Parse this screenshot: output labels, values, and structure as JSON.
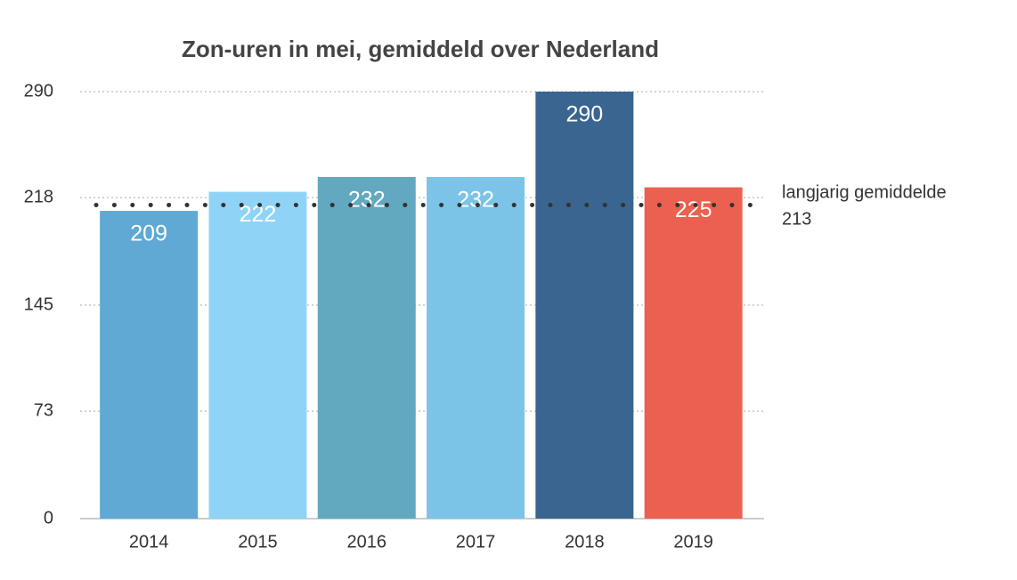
{
  "chart_data": {
    "type": "bar",
    "title": "Zon-uren in mei, gemiddeld over Nederland",
    "categories": [
      "2014",
      "2015",
      "2016",
      "2017",
      "2018",
      "2019"
    ],
    "values": [
      209,
      222,
      232,
      232,
      290,
      225
    ],
    "colors": [
      "#5fa9d4",
      "#8fd4f7",
      "#62a9c0",
      "#7cc3e8",
      "#3a6590",
      "#ec6050"
    ],
    "ylim": [
      0,
      290
    ],
    "yticks": [
      0,
      73,
      145,
      218,
      290
    ],
    "grid": true,
    "reference_line": {
      "value": 213,
      "label": "langjarig gemiddelde"
    }
  }
}
